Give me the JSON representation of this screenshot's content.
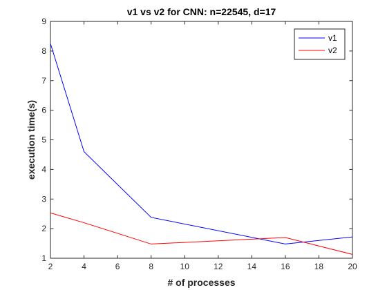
{
  "chart_data": {
    "type": "line",
    "title": "v1 vs v2 for CNN: n=22545, d=17",
    "xlabel": "# of processes",
    "ylabel": "execution time(s)",
    "xlim": [
      2,
      20
    ],
    "ylim": [
      1,
      9
    ],
    "xticks": [
      2,
      4,
      6,
      8,
      10,
      12,
      14,
      16,
      18,
      20
    ],
    "yticks": [
      1,
      2,
      3,
      4,
      5,
      6,
      7,
      8,
      9
    ],
    "grid": false,
    "legend_position": "top-right",
    "x": [
      2,
      4,
      8,
      16,
      20
    ],
    "series": [
      {
        "name": "v1",
        "color": "#0000ff",
        "values": [
          8.25,
          4.6,
          2.38,
          1.48,
          1.72
        ]
      },
      {
        "name": "v2",
        "color": "#ff0000",
        "values": [
          2.53,
          2.2,
          1.48,
          1.7,
          1.13
        ]
      }
    ]
  }
}
